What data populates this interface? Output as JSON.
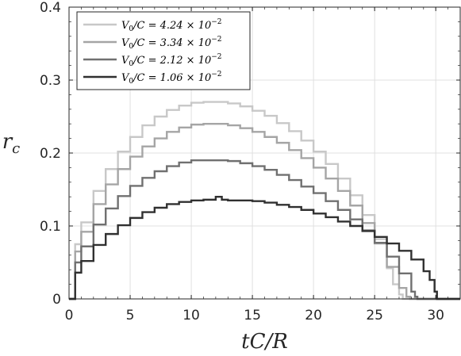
{
  "chart_data": {
    "type": "line",
    "title": "",
    "xlabel": "tC/R",
    "ylabel": "r_c",
    "xlim": [
      0,
      32
    ],
    "ylim": [
      0,
      0.4
    ],
    "xticks": [
      0,
      5,
      10,
      15,
      20,
      25,
      30
    ],
    "yticks": [
      0,
      0.1,
      0.2,
      0.3,
      0.4
    ],
    "xtick_labels": [
      "0",
      "5",
      "10",
      "15",
      "20",
      "25",
      "30"
    ],
    "ytick_labels": [
      "0",
      "0.1",
      "0.2",
      "0.3",
      "0.4"
    ],
    "grid": true,
    "legend_position": "top-left",
    "step": true,
    "series": [
      {
        "name": "V0/C = 4.24 × 10^-2",
        "color": "#c8c8c8",
        "x": [
          0,
          0.5,
          1,
          2,
          3,
          4,
          5,
          6,
          7,
          8,
          9,
          10,
          11,
          12,
          13,
          14,
          15,
          16,
          17,
          18,
          19,
          20,
          21,
          22,
          23,
          24,
          25,
          26,
          26.5,
          27,
          27.3,
          27.5,
          32
        ],
        "y": [
          0,
          0.075,
          0.105,
          0.148,
          0.178,
          0.202,
          0.222,
          0.238,
          0.25,
          0.259,
          0.265,
          0.269,
          0.27,
          0.27,
          0.268,
          0.264,
          0.258,
          0.251,
          0.241,
          0.23,
          0.217,
          0.202,
          0.185,
          0.165,
          0.142,
          0.115,
          0.082,
          0.042,
          0.02,
          0.006,
          0,
          0,
          0
        ]
      },
      {
        "name": "V0/C = 3.34 × 10^-2",
        "color": "#a5a5a5",
        "x": [
          0,
          0.5,
          1,
          2,
          3,
          4,
          5,
          6,
          7,
          8,
          9,
          10,
          11,
          12,
          13,
          14,
          15,
          16,
          17,
          18,
          19,
          20,
          21,
          22,
          23,
          24,
          25,
          26,
          27,
          27.6,
          27.9,
          32
        ],
        "y": [
          0,
          0.065,
          0.092,
          0.13,
          0.157,
          0.178,
          0.195,
          0.209,
          0.22,
          0.229,
          0.235,
          0.239,
          0.24,
          0.24,
          0.238,
          0.234,
          0.229,
          0.222,
          0.214,
          0.204,
          0.193,
          0.18,
          0.165,
          0.148,
          0.128,
          0.104,
          0.076,
          0.044,
          0.015,
          0.003,
          0,
          0
        ]
      },
      {
        "name": "V0/C = 2.12 × 10^-2",
        "color": "#707070",
        "x": [
          0,
          0.5,
          1,
          2,
          3,
          4,
          5,
          6,
          7,
          8,
          9,
          10,
          11,
          12,
          13,
          14,
          15,
          16,
          17,
          18,
          19,
          20,
          21,
          22,
          23,
          24,
          25,
          26,
          27,
          28,
          28.3,
          28.5,
          32
        ],
        "y": [
          0,
          0.05,
          0.072,
          0.102,
          0.124,
          0.141,
          0.155,
          0.166,
          0.175,
          0.182,
          0.187,
          0.19,
          0.19,
          0.19,
          0.189,
          0.186,
          0.182,
          0.177,
          0.17,
          0.163,
          0.154,
          0.145,
          0.134,
          0.122,
          0.109,
          0.094,
          0.077,
          0.058,
          0.035,
          0.01,
          0.003,
          0,
          0
        ]
      },
      {
        "name": "V0/C = 1.06 × 10^-2",
        "color": "#303030",
        "x": [
          0,
          0.5,
          1,
          2,
          3,
          4,
          5,
          6,
          7,
          8,
          9,
          10,
          11,
          12,
          12.5,
          13,
          14,
          15,
          16,
          17,
          18,
          19,
          20,
          21,
          22,
          23,
          24,
          25,
          26,
          27,
          28,
          29,
          29.5,
          29.9,
          30.1,
          32
        ],
        "y": [
          0,
          0.036,
          0.052,
          0.074,
          0.089,
          0.101,
          0.111,
          0.119,
          0.125,
          0.13,
          0.133,
          0.135,
          0.136,
          0.14,
          0.136,
          0.135,
          0.135,
          0.134,
          0.132,
          0.129,
          0.126,
          0.122,
          0.117,
          0.112,
          0.106,
          0.1,
          0.093,
          0.085,
          0.076,
          0.066,
          0.054,
          0.038,
          0.026,
          0.01,
          0,
          0
        ]
      }
    ],
    "legend_labels": [
      {
        "lhs": "V",
        "sub": "0",
        "rhs": "/C = 4.24 × 10",
        "exp": "−2"
      },
      {
        "lhs": "V",
        "sub": "0",
        "rhs": "/C = 3.34 × 10",
        "exp": "−2"
      },
      {
        "lhs": "V",
        "sub": "0",
        "rhs": "/C = 2.12 × 10",
        "exp": "−2"
      },
      {
        "lhs": "V",
        "sub": "0",
        "rhs": "/C = 1.06 × 10",
        "exp": "−2"
      }
    ],
    "ylabel_main": "r",
    "ylabel_sub": "c"
  }
}
